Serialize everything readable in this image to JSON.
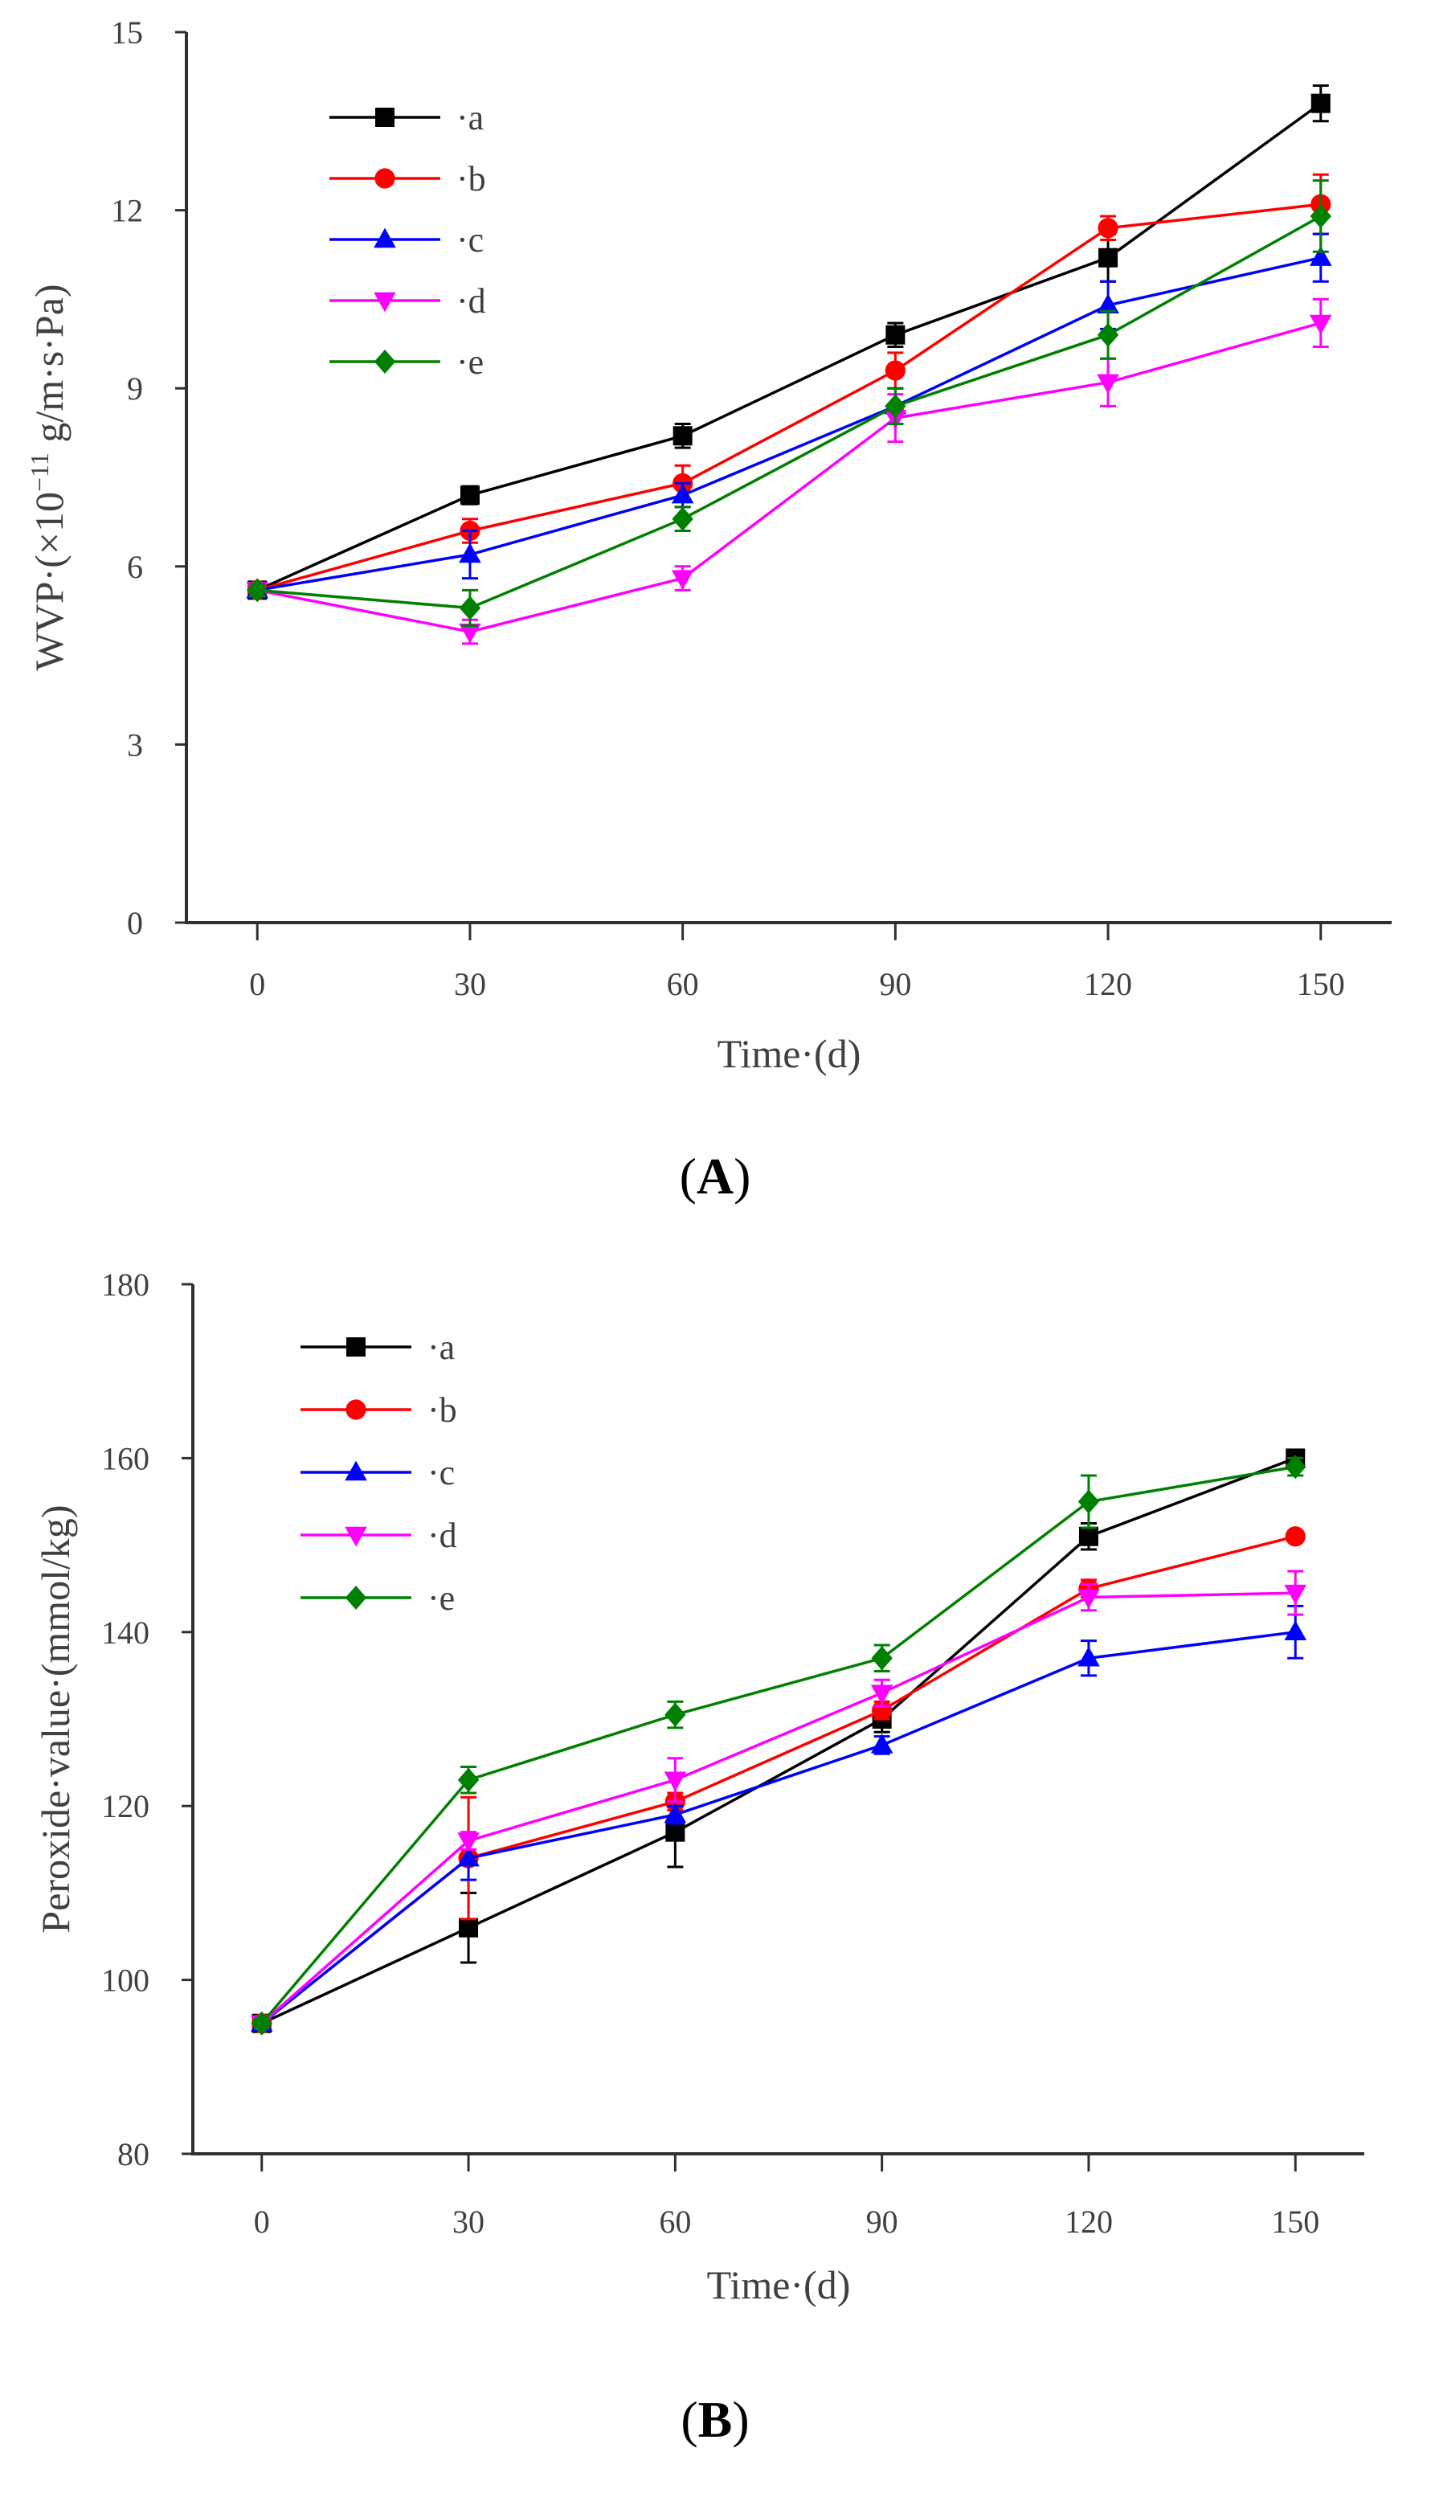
{
  "series_styles": [
    {
      "name": "a",
      "color": "#000000",
      "marker": "square"
    },
    {
      "name": "b",
      "color": "#ff0000",
      "marker": "circle"
    },
    {
      "name": "c",
      "color": "#0000ff",
      "marker": "triangle-up"
    },
    {
      "name": "d",
      "color": "#ff00ff",
      "marker": "triangle-down"
    },
    {
      "name": "e",
      "color": "#008000",
      "marker": "diamond"
    }
  ],
  "chart_data": [
    {
      "id": "A",
      "type": "line",
      "panel_label": {
        "open": "(",
        "letter": "A",
        "close": ")"
      },
      "xlabel": "Time·(d)",
      "ylabel": "WVP·(×10",
      "ylabel_sup": "−11",
      "ylabel_suffix": " g/m·s·Pa)",
      "xlim": [
        -10,
        160
      ],
      "ylim": [
        0,
        15
      ],
      "x": [
        0,
        30,
        60,
        90,
        120,
        150
      ],
      "x_ticks": [
        "0",
        "30",
        "60",
        "90",
        "120",
        "150"
      ],
      "y_ticks": [
        "0",
        "3",
        "6",
        "9",
        "12",
        "15"
      ],
      "y_tick_values": [
        0,
        3,
        6,
        9,
        12,
        15
      ],
      "legend_labels": [
        "·a",
        "·b",
        "·c",
        "·d",
        "·e"
      ],
      "series": [
        {
          "name": "a",
          "values": [
            5.6,
            7.2,
            8.2,
            9.9,
            11.2,
            13.8
          ],
          "errors": [
            0.1,
            0.15,
            0.2,
            0.2,
            0.4,
            0.3
          ]
        },
        {
          "name": "b",
          "values": [
            5.6,
            6.6,
            7.4,
            9.3,
            11.7,
            12.1
          ],
          "errors": [
            0.1,
            0.2,
            0.3,
            0.3,
            0.2,
            0.5
          ]
        },
        {
          "name": "c",
          "values": [
            5.6,
            6.2,
            7.2,
            8.7,
            10.4,
            11.2
          ],
          "errors": [
            0.1,
            0.4,
            0.2,
            0.3,
            0.4,
            0.4
          ]
        },
        {
          "name": "d",
          "values": [
            5.6,
            4.9,
            5.8,
            8.5,
            9.1,
            10.1
          ],
          "errors": [
            0.1,
            0.2,
            0.2,
            0.4,
            0.4,
            0.4
          ]
        },
        {
          "name": "e",
          "values": [
            5.6,
            5.3,
            6.8,
            8.7,
            9.9,
            11.9
          ],
          "errors": [
            0.1,
            0.3,
            0.2,
            0.3,
            0.4,
            0.6
          ]
        }
      ]
    },
    {
      "id": "B",
      "type": "line",
      "panel_label": {
        "open": "(",
        "letter": "B",
        "close": ")"
      },
      "xlabel": "Time·(d)",
      "ylabel": "Peroxide·value·(mmol/kg)",
      "xlim": [
        -10,
        160
      ],
      "ylim": [
        80,
        180
      ],
      "x": [
        0,
        30,
        60,
        90,
        120,
        150
      ],
      "x_ticks": [
        "0",
        "30",
        "60",
        "90",
        "120",
        "150"
      ],
      "y_ticks": [
        "80",
        "100",
        "120",
        "140",
        "160",
        "180"
      ],
      "y_tick_values": [
        80,
        100,
        120,
        140,
        160,
        180
      ],
      "legend_labels": [
        "·a",
        "·b",
        "·c",
        "·d",
        "·e"
      ],
      "series": [
        {
          "name": "a",
          "values": [
            95,
            106,
            117,
            130,
            151,
            160
          ],
          "errors": [
            0.5,
            4,
            4,
            1.5,
            1.5,
            0.5
          ]
        },
        {
          "name": "b",
          "values": [
            95,
            114,
            120.5,
            131,
            145,
            151
          ],
          "errors": [
            0.5,
            7,
            1,
            1,
            1,
            0.5
          ]
        },
        {
          "name": "c",
          "values": [
            95,
            114,
            119,
            127,
            137,
            140
          ],
          "errors": [
            0.5,
            2.5,
            1,
            1,
            2,
            3
          ]
        },
        {
          "name": "d",
          "values": [
            95,
            116,
            123,
            133,
            144,
            144.5
          ],
          "errors": [
            0.5,
            1,
            2.5,
            1.5,
            1.5,
            2.5
          ]
        },
        {
          "name": "e",
          "values": [
            95,
            123,
            130.5,
            137,
            155,
            159
          ],
          "errors": [
            0.5,
            1.5,
            1.5,
            1.5,
            3,
            1
          ]
        }
      ]
    }
  ]
}
